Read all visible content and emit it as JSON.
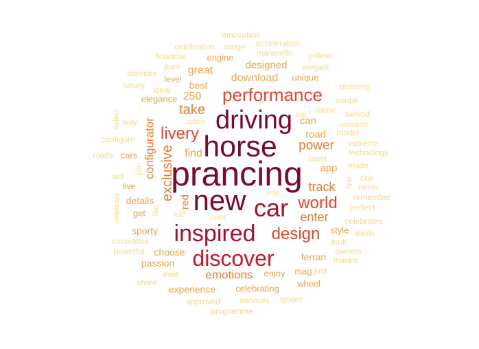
{
  "palette": {
    "t1": "#7a0b2b",
    "t2": "#a5102f",
    "t3": "#c8182a",
    "t4": "#e8452c",
    "t5": "#f07a2e",
    "t6": "#f5a447",
    "t7": "#f8c46a",
    "t8": "#fbd98f",
    "t9": "#fde6b0"
  },
  "words": [
    {
      "text": "prancing",
      "tier": "t1"
    },
    {
      "text": "horse",
      "tier": "t1"
    },
    {
      "text": "new",
      "tier": "t1"
    },
    {
      "text": "driving",
      "tier": "t1"
    },
    {
      "text": "car",
      "tier": "t2"
    },
    {
      "text": "inspired",
      "tier": "t2"
    },
    {
      "text": "discover",
      "tier": "t3"
    },
    {
      "text": "performance",
      "tier": "t4"
    },
    {
      "text": "world",
      "tier": "t4"
    },
    {
      "text": "design",
      "tier": "t4"
    },
    {
      "text": "livery",
      "tier": "t4"
    },
    {
      "text": "power",
      "tier": "t5"
    },
    {
      "text": "take",
      "tier": "t5"
    },
    {
      "text": "exclusive",
      "tier": "t5"
    },
    {
      "text": "configurator",
      "tier": "t5"
    },
    {
      "text": "track",
      "tier": "t5"
    },
    {
      "text": "enter",
      "tier": "t5"
    },
    {
      "text": "emotions",
      "tier": "t5"
    },
    {
      "text": "red",
      "tier": "t5"
    },
    {
      "text": "download",
      "tier": "t6"
    },
    {
      "text": "designed",
      "tier": "t6"
    },
    {
      "text": "great",
      "tier": "t6"
    },
    {
      "text": "best",
      "tier": "t6"
    },
    {
      "text": "250",
      "tier": "t6"
    },
    {
      "text": "find",
      "tier": "t6"
    },
    {
      "text": "road",
      "tier": "t6"
    },
    {
      "text": "can",
      "tier": "t6"
    },
    {
      "text": "app",
      "tier": "t6"
    },
    {
      "text": "ferrari",
      "tier": "t6"
    },
    {
      "text": "sporty",
      "tier": "t6"
    },
    {
      "text": "details",
      "tier": "t6"
    },
    {
      "text": "choose",
      "tier": "t6"
    },
    {
      "text": "passion",
      "tier": "t6"
    },
    {
      "text": "experience",
      "tier": "t6"
    },
    {
      "text": "enjoy",
      "tier": "t6"
    },
    {
      "text": "mag",
      "tier": "t6"
    },
    {
      "text": "celebrating",
      "tier": "t6"
    },
    {
      "text": "style",
      "tier": "t6"
    },
    {
      "text": "elegance",
      "tier": "t6"
    },
    {
      "text": "get",
      "tier": "t6"
    },
    {
      "text": "live",
      "tier": "t6"
    },
    {
      "text": "cars",
      "tier": "t6"
    },
    {
      "text": "engine",
      "tier": "t6"
    },
    {
      "text": "level",
      "tier": "t6"
    },
    {
      "text": "unique",
      "tier": "t6"
    },
    {
      "text": "wheel",
      "tier": "t6"
    },
    {
      "text": "innovation",
      "tier": "t8"
    },
    {
      "text": "acceleration",
      "tier": "t8"
    },
    {
      "text": "celebration",
      "tier": "t8"
    },
    {
      "text": "range",
      "tier": "t8"
    },
    {
      "text": "maranello",
      "tier": "t8"
    },
    {
      "text": "yellow",
      "tier": "t8"
    },
    {
      "text": "financial",
      "tier": "t8"
    },
    {
      "text": "pure",
      "tier": "t8"
    },
    {
      "text": "elegant",
      "tier": "t8"
    },
    {
      "text": "interiors",
      "tier": "t8"
    },
    {
      "text": "luxury",
      "tier": "t8"
    },
    {
      "text": "ideal",
      "tier": "t8"
    },
    {
      "text": "stunning",
      "tier": "t8"
    },
    {
      "text": "coupé",
      "tier": "t8"
    },
    {
      "text": "name",
      "tier": "t8"
    },
    {
      "text": "top",
      "tier": "t8"
    },
    {
      "text": "behind",
      "tier": "t8"
    },
    {
      "text": "cabin",
      "tier": "t8"
    },
    {
      "text": "unleash",
      "tier": "t8"
    },
    {
      "text": "way",
      "tier": "t8"
    },
    {
      "text": "model",
      "tier": "t8"
    },
    {
      "text": "select",
      "tier": "t8"
    },
    {
      "text": "configure",
      "tier": "t8"
    },
    {
      "text": "extreme",
      "tier": "t8"
    },
    {
      "text": "technology",
      "tier": "t8"
    },
    {
      "text": "roads",
      "tier": "t8"
    },
    {
      "text": "latest",
      "tier": "t8"
    },
    {
      "text": "join",
      "tier": "t8"
    },
    {
      "text": "made",
      "tier": "t8"
    },
    {
      "text": "will",
      "tier": "t8"
    },
    {
      "text": "ride",
      "tier": "t8"
    },
    {
      "text": "first",
      "tier": "t8"
    },
    {
      "text": "never",
      "tier": "t8"
    },
    {
      "text": "one",
      "tier": "t8"
    },
    {
      "text": "remember",
      "tier": "t8"
    },
    {
      "text": "celebrate",
      "tier": "t8"
    },
    {
      "text": "perfect",
      "tier": "t8"
    },
    {
      "text": "like",
      "tier": "t8"
    },
    {
      "text": "v12",
      "tier": "t8"
    },
    {
      "text": "color",
      "tier": "t8"
    },
    {
      "text": "celebrates",
      "tier": "t8"
    },
    {
      "text": "thrills",
      "tier": "t8"
    },
    {
      "text": "look",
      "tier": "t8"
    },
    {
      "text": "innovative",
      "tier": "t8"
    },
    {
      "text": "powerful",
      "tier": "t8"
    },
    {
      "text": "owners",
      "tier": "t8"
    },
    {
      "text": "thanks",
      "tier": "t8"
    },
    {
      "text": "ever",
      "tier": "t8"
    },
    {
      "text": "just",
      "tier": "t8"
    },
    {
      "text": "share",
      "tier": "t8"
    },
    {
      "text": "approved",
      "tier": "t8"
    },
    {
      "text": "services",
      "tier": "t8"
    },
    {
      "text": "spider",
      "tier": "t8"
    },
    {
      "text": "programme",
      "tier": "t8"
    }
  ]
}
